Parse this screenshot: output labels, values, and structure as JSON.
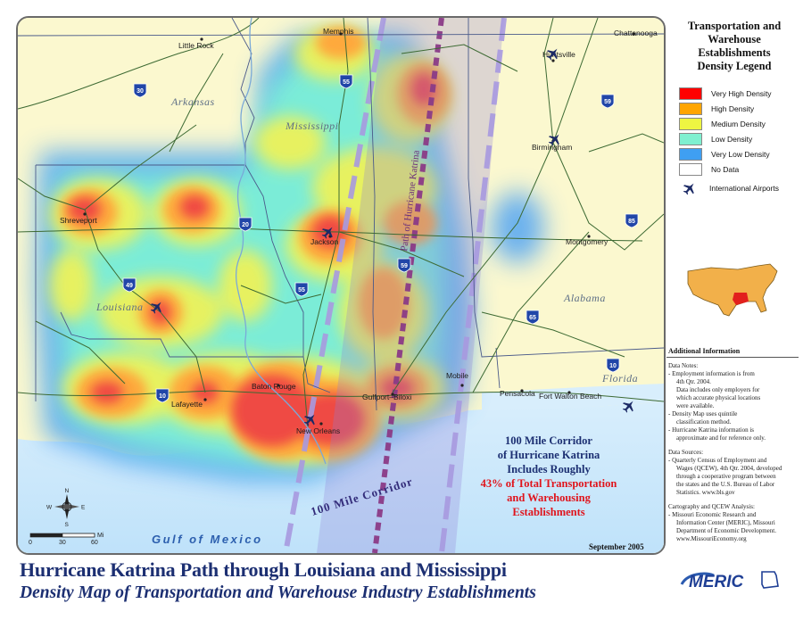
{
  "legend": {
    "title_lines": [
      "Transportation and",
      "Warehouse",
      "Establishments",
      "Density Legend"
    ],
    "items": [
      {
        "label": "Very High Density",
        "color": "#ff0000"
      },
      {
        "label": "High Density",
        "color": "#ffa500"
      },
      {
        "label": "Medium Density",
        "color": "#eef542"
      },
      {
        "label": "Low Density",
        "color": "#7ff0d0"
      },
      {
        "label": "Very Low Density",
        "color": "#3f9ff2"
      },
      {
        "label": "No Data",
        "color": "#ffffff"
      }
    ],
    "airport_label": "International Airports",
    "airport_icon": "airplane-icon"
  },
  "info": {
    "heading": "Additional Information",
    "data_notes_heading": "Data Notes:",
    "data_notes": [
      "- Employment information is from",
      "4th Qtr. 2004.",
      "Data includes only employers for",
      "which accurate physical locations",
      "were available.",
      "- Density Map uses quintile",
      "classification method.",
      "- Hurricane Katrina information is",
      "approximate and for reference only."
    ],
    "data_sources_heading": "Data Sources:",
    "data_sources": [
      "- Quarterly Census of Employment and",
      "Wages (QCEW), 4th Qtr. 2004, developed",
      "through a cooperative program between",
      "the states and the U.S. Bureau of Labor",
      "Statistics. www.bls.gov"
    ],
    "cartography_heading": "Cartography and QCEW Analysis:",
    "cartography": [
      "- Missouri Economic Research and",
      "Information Center (MERIC), Missouri",
      "Department of Economic Development.",
      "www.MissouriEconomy.org"
    ]
  },
  "map": {
    "states": {
      "arkansas": "Arkansas",
      "mississippi": "Mississippi",
      "louisiana": "Louisiana",
      "alabama": "Alabama",
      "florida": "Florida"
    },
    "water": "Gulf of Mexico",
    "cities": {
      "memphis": "Memphis",
      "little_rock": "Little Rock",
      "huntsville": "Huntsville",
      "chattanooga": "Chattanooga",
      "birmingham": "Birmingham",
      "shreveport": "Shreveport",
      "jackson": "Jackson",
      "montgomery": "Montgomery",
      "lafayette": "Lafayette",
      "baton_rouge": "Baton Rouge",
      "new_orleans": "New Orleans",
      "gulfport_biloxi": "Gulfport–Biloxi",
      "mobile": "Mobile",
      "pensacola": "Pensacola",
      "fort_walton_beach": "Fort Walton Beach"
    },
    "interstates": {
      "i30": "30",
      "i55_north": "55",
      "i59_north": "59",
      "i20": "20",
      "i85": "85",
      "i49": "49",
      "i55_south": "55",
      "i59_south": "59",
      "i65": "65",
      "i10_west": "10",
      "i10_east": "10"
    },
    "path_label": "Path of Hurricane Katrina",
    "corridor_label": "100 Mile Corridor",
    "compass": {
      "n": "N",
      "s": "S",
      "e": "E",
      "w": "W"
    },
    "scale": {
      "unit": "Mi",
      "ticks": [
        "0",
        "30",
        "60"
      ]
    }
  },
  "corridor_note": {
    "lines": [
      "100 Mile Corridor",
      "of Hurricane Katrina",
      "Includes Roughly"
    ],
    "highlight_lines": [
      "43% of Total Transportation",
      "and Warehousing",
      "Establishments"
    ],
    "line_color": "#1c2f72",
    "highlight_color": "#e0141c"
  },
  "date": "September 2005",
  "title": "Hurricane Katrina Path through Louisiana and Mississippi",
  "subtitle": "Density Map of Transportation and Warehouse Industry Establishments",
  "logo": "MERIC"
}
